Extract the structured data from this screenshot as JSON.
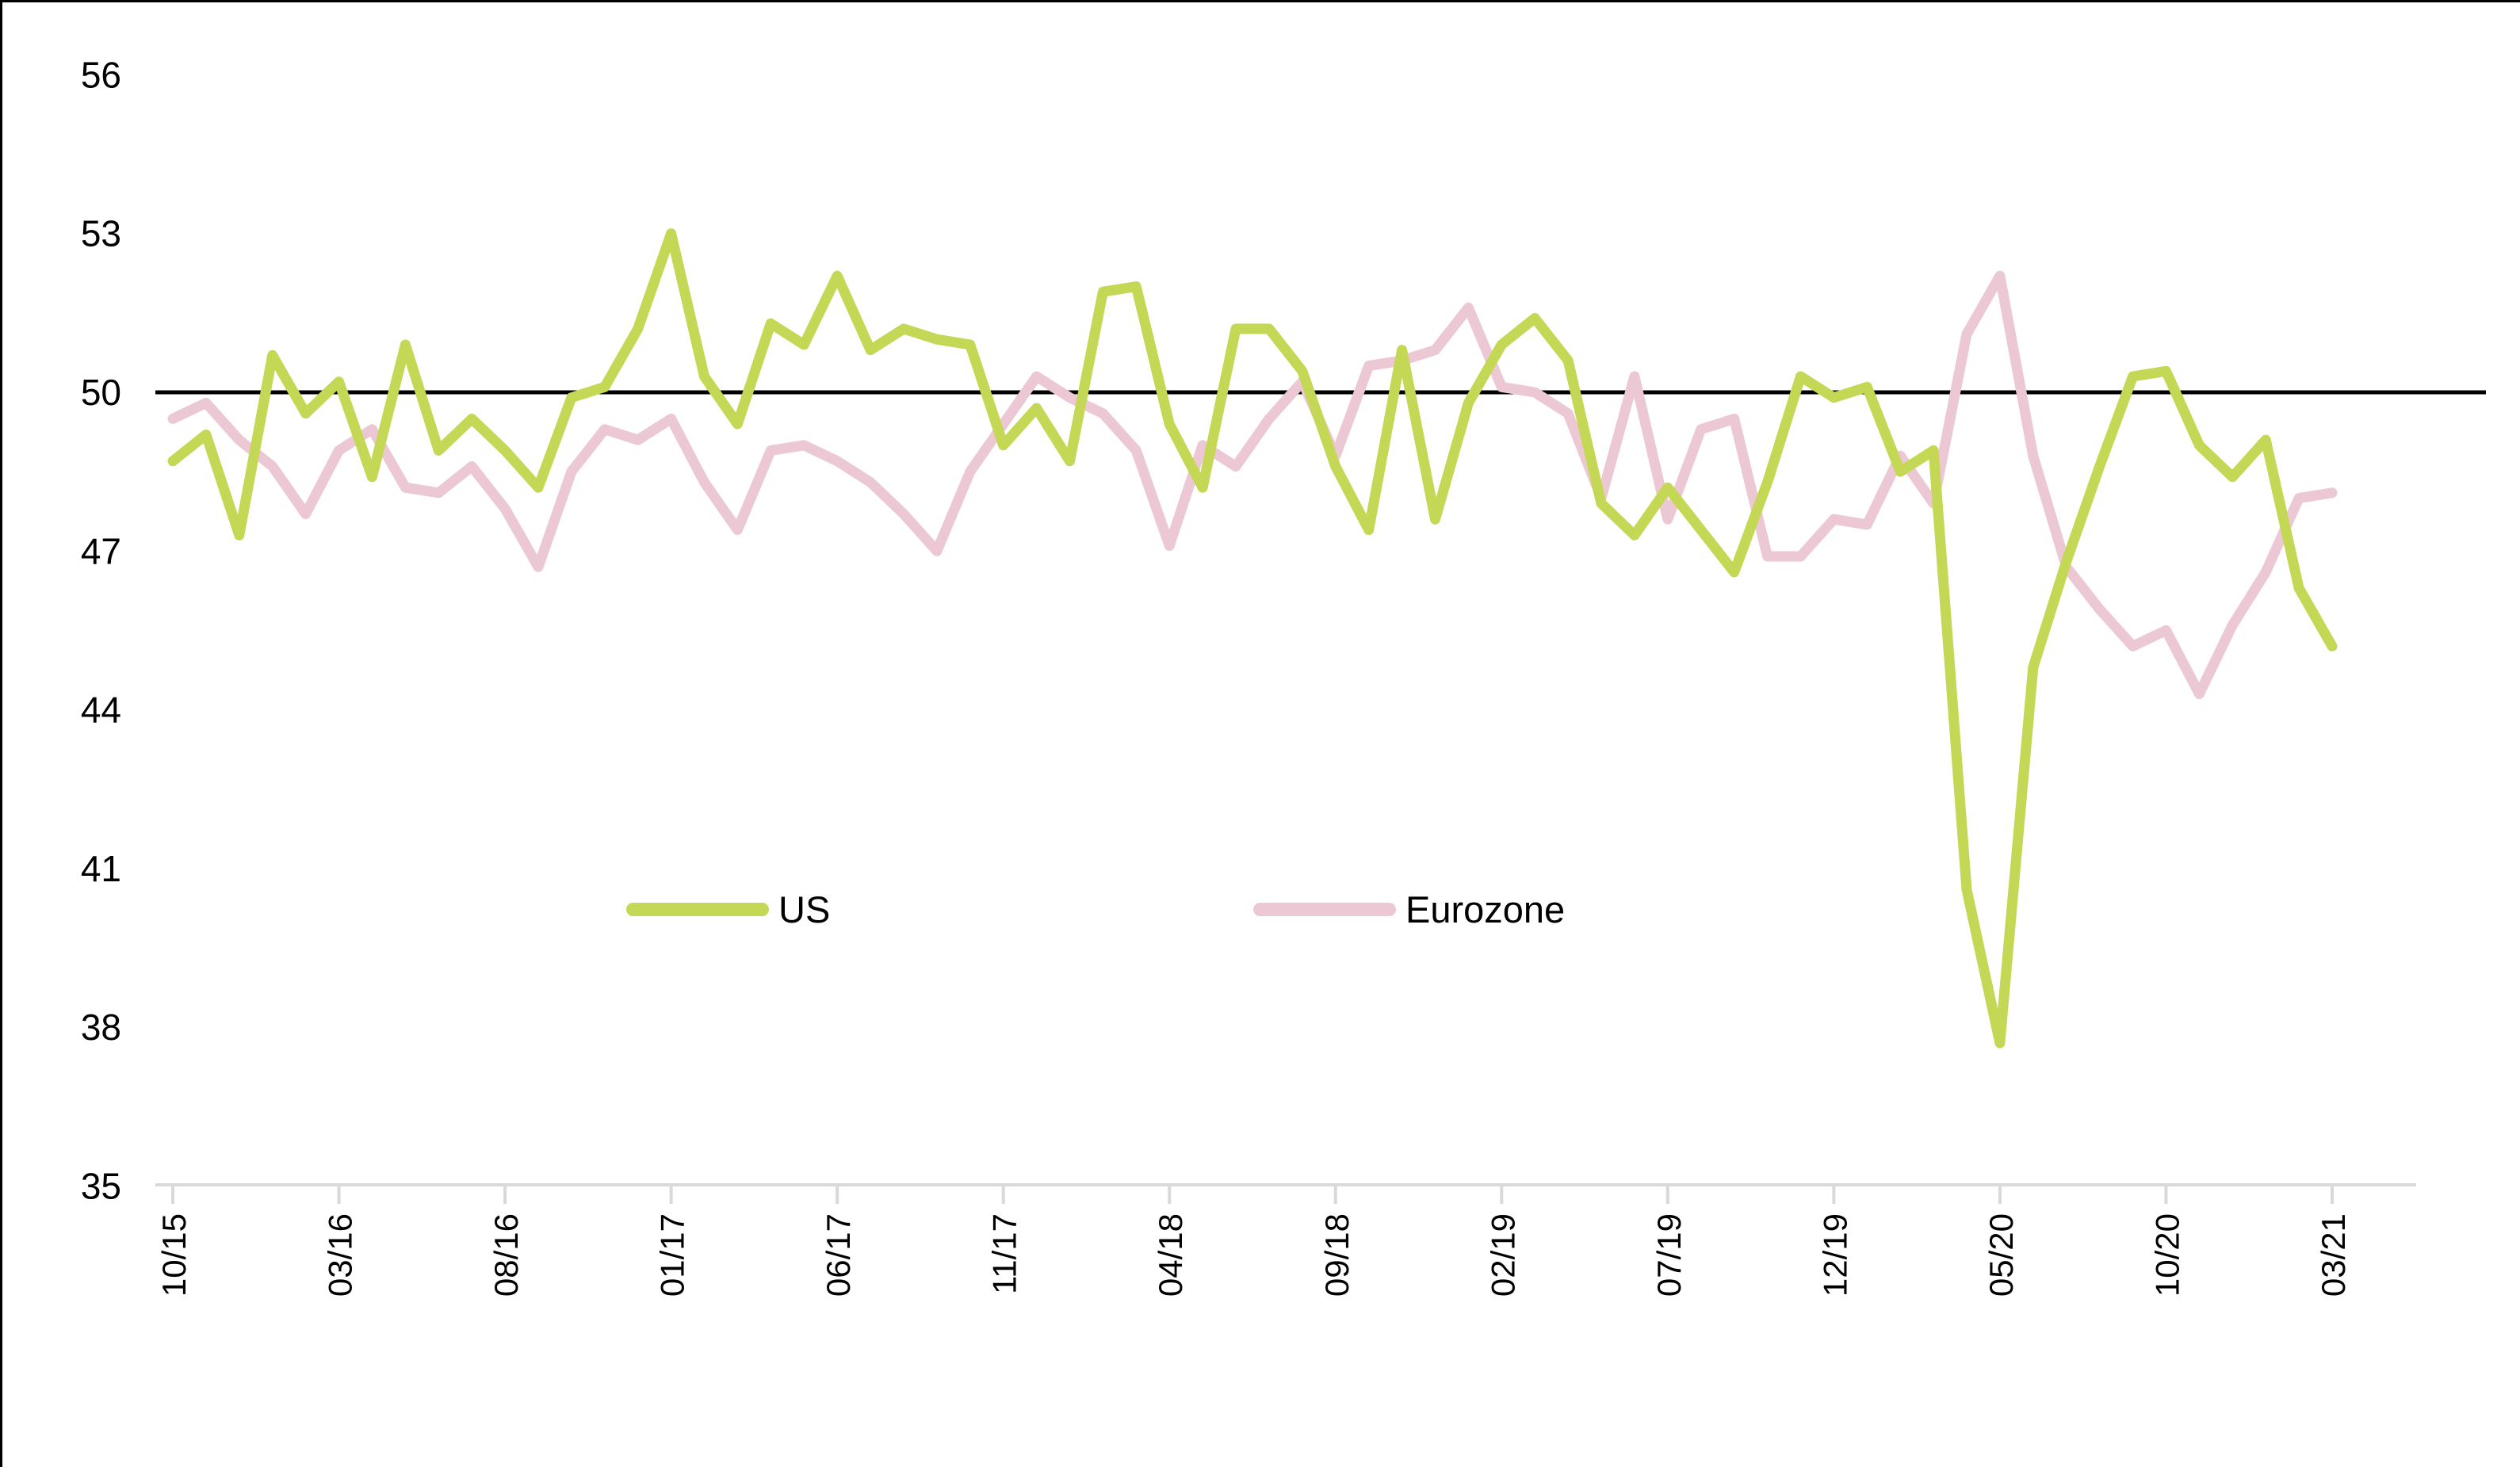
{
  "chart_data": {
    "type": "line",
    "title": "",
    "xlabel": "",
    "ylabel": "",
    "ylim": [
      35,
      56
    ],
    "yticks": [
      35,
      38,
      41,
      44,
      47,
      50,
      53,
      56
    ],
    "reference_line": 50,
    "grid": "off",
    "legend_position": "inside-center",
    "x_categories": [
      "10/15",
      "11/15",
      "12/15",
      "01/16",
      "02/16",
      "03/16",
      "04/16",
      "05/16",
      "06/16",
      "07/16",
      "08/16",
      "09/16",
      "10/16",
      "11/16",
      "12/16",
      "01/17",
      "02/17",
      "03/17",
      "04/17",
      "05/17",
      "06/17",
      "07/17",
      "08/17",
      "09/17",
      "10/17",
      "11/17",
      "12/17",
      "01/18",
      "02/18",
      "03/18",
      "04/18",
      "05/18",
      "06/18",
      "07/18",
      "08/18",
      "09/18",
      "10/18",
      "11/18",
      "12/18",
      "01/19",
      "02/19",
      "03/19",
      "04/19",
      "05/19",
      "06/19",
      "07/19",
      "08/19",
      "09/19",
      "10/19",
      "11/19",
      "12/19",
      "01/20",
      "02/20",
      "03/20",
      "04/20",
      "05/20",
      "06/20",
      "07/20",
      "08/20",
      "09/20",
      "10/20",
      "11/20",
      "12/20",
      "01/21",
      "02/21",
      "03/21"
    ],
    "xtick_labels": [
      "10/15",
      "03/16",
      "08/16",
      "01/17",
      "06/17",
      "11/17",
      "04/18",
      "09/18",
      "02/19",
      "07/19",
      "12/19",
      "05/20",
      "10/20",
      "03/21"
    ],
    "xtick_month_indices": [
      0,
      5,
      10,
      15,
      20,
      25,
      30,
      35,
      40,
      45,
      50,
      55,
      60,
      65
    ],
    "series": [
      {
        "name": "US",
        "color": "#c5d855",
        "values": [
          48.7,
          49.2,
          47.3,
          50.7,
          49.6,
          50.2,
          48.4,
          50.9,
          48.9,
          49.5,
          48.9,
          48.2,
          49.9,
          50.1,
          51.2,
          53.0,
          50.3,
          49.4,
          51.3,
          50.9,
          52.2,
          50.8,
          51.2,
          51.0,
          50.9,
          49.0,
          49.7,
          48.7,
          51.9,
          52.0,
          49.4,
          48.2,
          51.2,
          51.2,
          50.4,
          48.6,
          47.4,
          50.8,
          47.6,
          49.8,
          50.9,
          51.4,
          50.6,
          47.9,
          47.3,
          48.2,
          47.4,
          46.6,
          48.3,
          50.3,
          49.9,
          50.1,
          48.5,
          48.9,
          40.6,
          37.7,
          44.8,
          46.8,
          48.6,
          50.3,
          50.4,
          49.0,
          48.4,
          49.1,
          46.3,
          45.2
        ]
      },
      {
        "name": "Eurozone",
        "color": "#ecc8d5",
        "values": [
          49.5,
          49.8,
          49.1,
          48.6,
          47.7,
          48.9,
          49.3,
          48.2,
          48.1,
          48.6,
          47.8,
          46.7,
          48.5,
          49.3,
          49.1,
          49.5,
          48.3,
          47.4,
          48.9,
          49.0,
          48.7,
          48.3,
          47.7,
          47.0,
          48.5,
          49.4,
          50.3,
          49.9,
          49.6,
          48.9,
          47.1,
          49.0,
          48.6,
          49.5,
          50.2,
          48.8,
          50.5,
          50.6,
          50.8,
          51.6,
          50.1,
          50.0,
          49.6,
          48.0,
          50.3,
          47.6,
          49.3,
          49.5,
          46.9,
          46.9,
          47.6,
          47.5,
          48.8,
          47.9,
          51.1,
          52.2,
          48.8,
          46.7,
          45.9,
          45.2,
          45.5,
          44.3,
          45.6,
          46.6,
          48.0,
          48.1
        ]
      }
    ],
    "axis_colors": {
      "axis_line": "#d9d9d9",
      "reference_line": "#000000",
      "tick_label": "#000000"
    }
  },
  "legend": {
    "us_label": "US",
    "eurozone_label": "Eurozone"
  }
}
